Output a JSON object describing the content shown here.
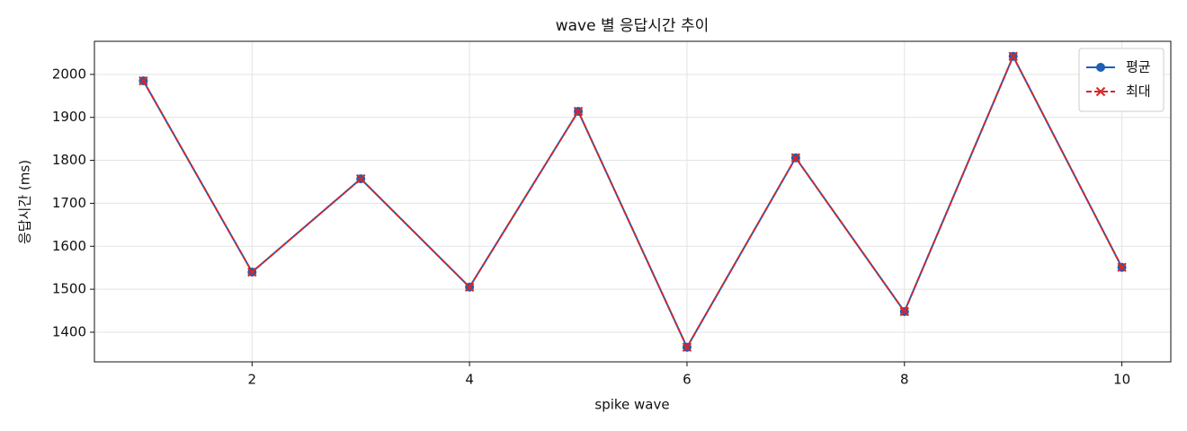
{
  "chart_data": {
    "type": "line",
    "title": "wave 별 응답시간 추이",
    "x_label": "spike wave",
    "y_label": "응답시간 (ms)",
    "x": [
      1,
      2,
      3,
      4,
      5,
      6,
      7,
      8,
      9,
      10
    ],
    "series": [
      {
        "name": "평균",
        "color": "#1f5fb4",
        "marker": "circle",
        "dash": false,
        "values": [
          1985,
          1540,
          1757,
          1505,
          1914,
          1365,
          1806,
          1448,
          2042,
          1551
        ]
      },
      {
        "name": "최대",
        "color": "#d62728",
        "marker": "x",
        "dash": true,
        "values": [
          1985,
          1540,
          1757,
          1505,
          1914,
          1365,
          1806,
          1448,
          2042,
          1551
        ]
      }
    ],
    "xlim": [
      0.55,
      10.45
    ],
    "ylim": [
      1331,
      2077
    ],
    "xticks": [
      2,
      4,
      6,
      8,
      10
    ],
    "yticks": [
      1400,
      1500,
      1600,
      1700,
      1800,
      1900,
      2000
    ],
    "grid": true,
    "legend": "upper right"
  }
}
